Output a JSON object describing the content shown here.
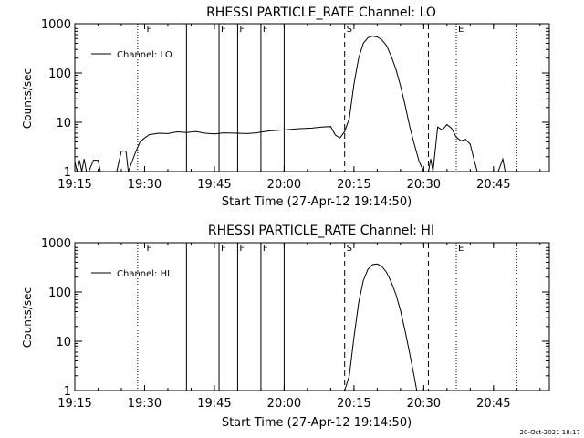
{
  "chart_data": [
    {
      "type": "line",
      "title": "RHESSI PARTICLE_RATE Channel: LO",
      "xlabel": "Start Time (27-Apr-12 19:14:50)",
      "ylabel": "Counts/sec",
      "yscale": "log",
      "ylim": [
        1,
        1000
      ],
      "xlim": [
        "19:15",
        "20:57"
      ],
      "x_ticks": [
        "19:15",
        "19:30",
        "19:45",
        "20:00",
        "20:15",
        "20:30",
        "20:45"
      ],
      "y_ticks": [
        "1",
        "10",
        "100",
        "1000"
      ],
      "legend": {
        "label": "Channel: LO",
        "position": "top-left"
      },
      "markers": [
        {
          "time": "19:28.5",
          "label": "",
          "style": "dotted"
        },
        {
          "time": "19:30",
          "label": "F",
          "style": "none"
        },
        {
          "time": "19:39",
          "label": "",
          "style": "solid"
        },
        {
          "time": "19:46",
          "label": "F",
          "style": "solid"
        },
        {
          "time": "19:50",
          "label": "F",
          "style": "solid"
        },
        {
          "time": "19:55",
          "label": "F",
          "style": "solid"
        },
        {
          "time": "20:00",
          "label": "",
          "style": "solid"
        },
        {
          "time": "20:13",
          "label": "S",
          "style": "dashed"
        },
        {
          "time": "20:31",
          "label": "",
          "style": "dashed"
        },
        {
          "time": "20:37",
          "label": "E",
          "style": "dotted"
        },
        {
          "time": "20:50",
          "label": "",
          "style": "dotted"
        }
      ],
      "series": [
        {
          "name": "Channel: LO",
          "points": [
            [
              "19:15",
              1.6
            ],
            [
              "19:15.5",
              1.0
            ],
            [
              "19:16",
              1.7
            ],
            [
              "19:16.5",
              1.0
            ],
            [
              "19:17",
              1.8
            ],
            [
              "19:17.5",
              1.0
            ],
            [
              "19:18",
              1.0
            ],
            [
              "19:19",
              1.7
            ],
            [
              "19:20",
              1.7
            ],
            [
              "19:20.5",
              1.0
            ],
            [
              "19:22",
              1.0
            ],
            [
              "19:24",
              1.0
            ],
            [
              "19:25",
              2.6
            ],
            [
              "19:26",
              2.6
            ],
            [
              "19:26.5",
              1.0
            ],
            [
              "19:28",
              2.4
            ],
            [
              "19:29",
              4.0
            ],
            [
              "19:30",
              4.8
            ],
            [
              "19:31",
              5.6
            ],
            [
              "19:33",
              6.0
            ],
            [
              "19:35",
              5.9
            ],
            [
              "19:37",
              6.4
            ],
            [
              "19:39",
              6.2
            ],
            [
              "19:41",
              6.5
            ],
            [
              "19:43",
              6.0
            ],
            [
              "19:45",
              5.8
            ],
            [
              "19:47",
              6.1
            ],
            [
              "19:50",
              6.0
            ],
            [
              "19:52",
              5.9
            ],
            [
              "19:54",
              6.1
            ],
            [
              "19:55",
              6.3
            ],
            [
              "19:57",
              6.7
            ],
            [
              "20:00",
              7.0
            ],
            [
              "20:03",
              7.4
            ],
            [
              "20:06",
              7.6
            ],
            [
              "20:08",
              8.0
            ],
            [
              "20:10",
              8.2
            ],
            [
              "20:11",
              5.5
            ],
            [
              "20:12",
              4.8
            ],
            [
              "20:13",
              6.5
            ],
            [
              "20:14",
              12
            ],
            [
              "20:15",
              60
            ],
            [
              "20:16",
              200
            ],
            [
              "20:17",
              400
            ],
            [
              "20:18",
              520
            ],
            [
              "20:19",
              560
            ],
            [
              "20:20",
              540
            ],
            [
              "20:21",
              470
            ],
            [
              "20:22",
              360
            ],
            [
              "20:23",
              220
            ],
            [
              "20:24",
              120
            ],
            [
              "20:25",
              55
            ],
            [
              "20:26",
              22
            ],
            [
              "20:27",
              8
            ],
            [
              "20:28",
              3.5
            ],
            [
              "20:29",
              1.6
            ],
            [
              "20:30",
              1.0
            ],
            [
              "20:31",
              1.0
            ],
            [
              "20:31.5",
              1.8
            ],
            [
              "20:32",
              1.0
            ],
            [
              "20:33",
              8.0
            ],
            [
              "20:34",
              7.0
            ],
            [
              "20:35",
              9.0
            ],
            [
              "20:36",
              7.5
            ],
            [
              "20:37",
              5.0
            ],
            [
              "20:38",
              4.2
            ],
            [
              "20:39",
              4.5
            ],
            [
              "20:40",
              3.6
            ],
            [
              "20:41",
              1.5
            ],
            [
              "20:41.5",
              1.0
            ],
            [
              "20:46",
              1.0
            ],
            [
              "20:47",
              1.8
            ],
            [
              "20:47.5",
              1.0
            ]
          ]
        }
      ]
    },
    {
      "type": "line",
      "title": "RHESSI PARTICLE_RATE Channel: HI",
      "xlabel": "Start Time (27-Apr-12 19:14:50)",
      "ylabel": "Counts/sec",
      "yscale": "log",
      "ylim": [
        1,
        1000
      ],
      "xlim": [
        "19:15",
        "20:57"
      ],
      "x_ticks": [
        "19:15",
        "19:30",
        "19:45",
        "20:00",
        "20:15",
        "20:30",
        "20:45"
      ],
      "y_ticks": [
        "1",
        "10",
        "100",
        "1000"
      ],
      "legend": {
        "label": "Channel: HI",
        "position": "top-left"
      },
      "markers": [
        {
          "time": "19:28.5",
          "label": "",
          "style": "dotted"
        },
        {
          "time": "19:30",
          "label": "F",
          "style": "none"
        },
        {
          "time": "19:39",
          "label": "",
          "style": "solid"
        },
        {
          "time": "19:46",
          "label": "F",
          "style": "solid"
        },
        {
          "time": "19:50",
          "label": "F",
          "style": "solid"
        },
        {
          "time": "19:55",
          "label": "F",
          "style": "solid"
        },
        {
          "time": "20:00",
          "label": "",
          "style": "solid"
        },
        {
          "time": "20:13",
          "label": "S",
          "style": "dashed"
        },
        {
          "time": "20:31",
          "label": "",
          "style": "dashed"
        },
        {
          "time": "20:37",
          "label": "E",
          "style": "dotted"
        },
        {
          "time": "20:50",
          "label": "",
          "style": "dotted"
        }
      ],
      "series": [
        {
          "name": "Channel: HI",
          "points": [
            [
              "20:13",
              1.0
            ],
            [
              "20:14",
              2.0
            ],
            [
              "20:15",
              12
            ],
            [
              "20:16",
              60
            ],
            [
              "20:17",
              170
            ],
            [
              "20:18",
              290
            ],
            [
              "20:19",
              360
            ],
            [
              "20:20",
              370
            ],
            [
              "20:21",
              330
            ],
            [
              "20:22",
              250
            ],
            [
              "20:23",
              160
            ],
            [
              "20:24",
              90
            ],
            [
              "20:25",
              42
            ],
            [
              "20:26",
              16
            ],
            [
              "20:27",
              5.5
            ],
            [
              "20:28",
              1.8
            ],
            [
              "20:28.5",
              1.0
            ]
          ]
        }
      ]
    }
  ],
  "footer": {
    "timestamp": "20-Oct-2021 18:17"
  }
}
